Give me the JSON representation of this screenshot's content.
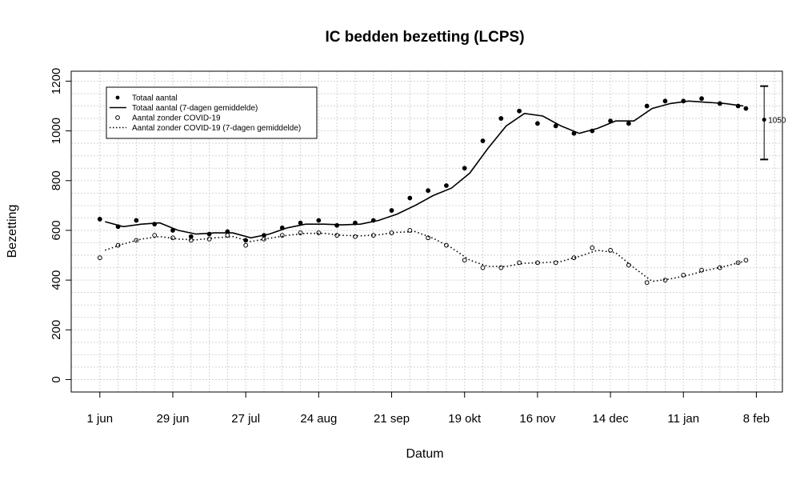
{
  "chart_data": {
    "type": "scatter",
    "title": "IC bedden bezetting (LCPS)",
    "xlabel": "Datum",
    "ylabel": "Bezetting",
    "x_range": [
      "2020-05-21",
      "2021-02-18"
    ],
    "ylim": [
      -50,
      1240
    ],
    "y_ticks": [
      0,
      200,
      400,
      600,
      800,
      1000,
      1200
    ],
    "x_ticks": [
      {
        "date": "2020-06-01",
        "label": "1 jun"
      },
      {
        "date": "2020-06-29",
        "label": "29 jun"
      },
      {
        "date": "2020-07-27",
        "label": "27 jul"
      },
      {
        "date": "2020-08-24",
        "label": "24 aug"
      },
      {
        "date": "2020-09-21",
        "label": "21 sep"
      },
      {
        "date": "2020-10-19",
        "label": "19 okt"
      },
      {
        "date": "2020-11-16",
        "label": "16 nov"
      },
      {
        "date": "2020-12-14",
        "label": "14 dec"
      },
      {
        "date": "2021-01-11",
        "label": "11 jan"
      },
      {
        "date": "2021-02-08",
        "label": "8 feb"
      }
    ],
    "grid": true,
    "legend_position": "top-left",
    "legend": [
      {
        "label": "Totaal aantal",
        "style": "filled-point"
      },
      {
        "label": "Totaal aantal (7-dagen gemiddelde)",
        "style": "solid-line"
      },
      {
        "label": "Aantal zonder COVID-19",
        "style": "open-point"
      },
      {
        "label": "Aantal zonder COVID-19 (7-dagen gemiddelde)",
        "style": "dotted-line"
      }
    ],
    "series": [
      {
        "name": "Totaal aantal",
        "style": "filled-point",
        "x": [
          "2020-06-01",
          "2020-06-08",
          "2020-06-15",
          "2020-06-22",
          "2020-06-29",
          "2020-07-06",
          "2020-07-13",
          "2020-07-20",
          "2020-07-27",
          "2020-08-03",
          "2020-08-10",
          "2020-08-17",
          "2020-08-24",
          "2020-08-31",
          "2020-09-07",
          "2020-09-14",
          "2020-09-21",
          "2020-09-28",
          "2020-10-05",
          "2020-10-12",
          "2020-10-19",
          "2020-10-26",
          "2020-11-02",
          "2020-11-09",
          "2020-11-16",
          "2020-11-23",
          "2020-11-30",
          "2020-12-07",
          "2020-12-14",
          "2020-12-21",
          "2020-12-28",
          "2021-01-04",
          "2021-01-11",
          "2021-01-18",
          "2021-01-25",
          "2021-02-01",
          "2021-02-04"
        ],
        "y": [
          645,
          615,
          640,
          625,
          600,
          575,
          585,
          595,
          560,
          580,
          610,
          630,
          640,
          620,
          630,
          640,
          680,
          730,
          760,
          780,
          850,
          960,
          1050,
          1080,
          1030,
          1020,
          990,
          1000,
          1040,
          1030,
          1100,
          1120,
          1120,
          1130,
          1110,
          1100,
          1090
        ]
      },
      {
        "name": "Totaal aantal (7-dagen gemiddelde)",
        "style": "solid-line",
        "x": [
          "2020-06-03",
          "2020-06-10",
          "2020-06-17",
          "2020-06-24",
          "2020-07-01",
          "2020-07-08",
          "2020-07-15",
          "2020-07-22",
          "2020-07-29",
          "2020-08-05",
          "2020-08-12",
          "2020-08-19",
          "2020-08-26",
          "2020-09-02",
          "2020-09-09",
          "2020-09-16",
          "2020-09-23",
          "2020-09-30",
          "2020-10-07",
          "2020-10-14",
          "2020-10-21",
          "2020-10-28",
          "2020-11-04",
          "2020-11-11",
          "2020-11-18",
          "2020-11-25",
          "2020-12-02",
          "2020-12-09",
          "2020-12-16",
          "2020-12-23",
          "2020-12-30",
          "2021-01-06",
          "2021-01-13",
          "2021-01-20",
          "2021-01-27",
          "2021-02-03"
        ],
        "y": [
          635,
          615,
          625,
          630,
          600,
          585,
          590,
          590,
          570,
          585,
          610,
          625,
          625,
          622,
          625,
          640,
          665,
          700,
          740,
          770,
          830,
          930,
          1020,
          1070,
          1060,
          1020,
          990,
          1010,
          1040,
          1040,
          1090,
          1110,
          1120,
          1115,
          1110,
          1100
        ]
      },
      {
        "name": "Aantal zonder COVID-19",
        "style": "open-point",
        "x": [
          "2020-06-01",
          "2020-06-08",
          "2020-06-15",
          "2020-06-22",
          "2020-06-29",
          "2020-07-06",
          "2020-07-13",
          "2020-07-20",
          "2020-07-27",
          "2020-08-03",
          "2020-08-10",
          "2020-08-17",
          "2020-08-24",
          "2020-08-31",
          "2020-09-07",
          "2020-09-14",
          "2020-09-21",
          "2020-09-28",
          "2020-10-05",
          "2020-10-12",
          "2020-10-19",
          "2020-10-26",
          "2020-11-02",
          "2020-11-09",
          "2020-11-16",
          "2020-11-23",
          "2020-11-30",
          "2020-12-07",
          "2020-12-14",
          "2020-12-21",
          "2020-12-28",
          "2021-01-04",
          "2021-01-11",
          "2021-01-18",
          "2021-01-25",
          "2021-02-01",
          "2021-02-04"
        ],
        "y": [
          490,
          540,
          560,
          580,
          570,
          560,
          565,
          580,
          540,
          565,
          580,
          590,
          590,
          580,
          575,
          580,
          590,
          600,
          570,
          540,
          480,
          450,
          450,
          470,
          470,
          470,
          490,
          530,
          520,
          460,
          390,
          400,
          420,
          440,
          450,
          470,
          480
        ]
      },
      {
        "name": "Aantal zonder COVID-19 (7-dagen gemiddelde)",
        "style": "dotted-line",
        "x": [
          "2020-06-03",
          "2020-06-10",
          "2020-06-17",
          "2020-06-24",
          "2020-07-01",
          "2020-07-08",
          "2020-07-15",
          "2020-07-22",
          "2020-07-29",
          "2020-08-05",
          "2020-08-12",
          "2020-08-19",
          "2020-08-26",
          "2020-09-02",
          "2020-09-09",
          "2020-09-16",
          "2020-09-23",
          "2020-09-30",
          "2020-10-07",
          "2020-10-14",
          "2020-10-21",
          "2020-10-28",
          "2020-11-04",
          "2020-11-11",
          "2020-11-18",
          "2020-11-25",
          "2020-12-02",
          "2020-12-09",
          "2020-12-16",
          "2020-12-23",
          "2020-12-30",
          "2021-01-06",
          "2021-01-13",
          "2021-01-20",
          "2021-01-27",
          "2021-02-03"
        ],
        "y": [
          520,
          545,
          565,
          575,
          565,
          562,
          570,
          575,
          555,
          568,
          580,
          588,
          588,
          580,
          578,
          582,
          592,
          595,
          568,
          530,
          480,
          455,
          455,
          468,
          470,
          475,
          495,
          520,
          510,
          450,
          395,
          405,
          420,
          440,
          455,
          475
        ]
      }
    ],
    "annotation": {
      "date": "2021-02-11",
      "value": 1045,
      "lower": 885,
      "upper": 1180,
      "label": "1050"
    }
  }
}
